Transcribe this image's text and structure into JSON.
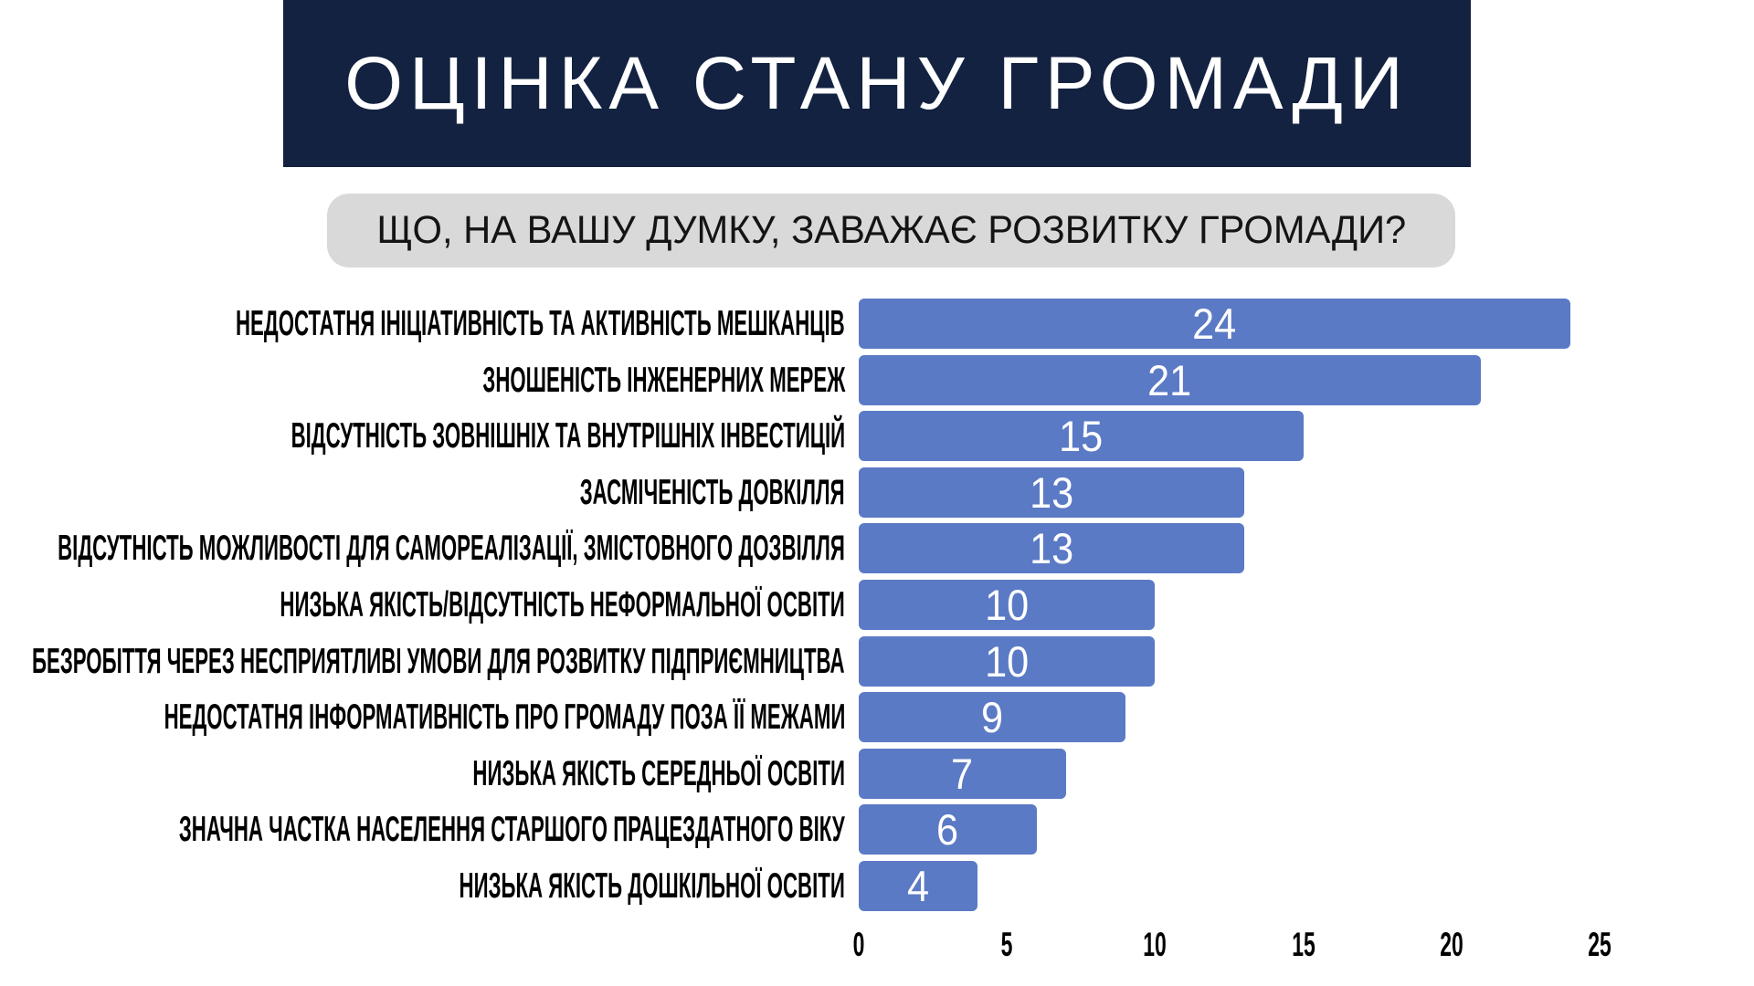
{
  "title": "ОЦІНКА СТАНУ ГРОМАДИ",
  "question": "ЩО, НА ВАШУ ДУМКУ, ЗАВАЖАЄ РОЗВИТКУ ГРОМАДИ?",
  "colors": {
    "page_bg": "#ffffff",
    "banner_bg": "#132240",
    "title_color": "#ffffff",
    "question_bg": "#d9d9d9",
    "question_color": "#141414",
    "bar_fill": "#5b7ac5",
    "value_color": "#ffffff",
    "label_color": "#000000"
  },
  "chart_data": {
    "type": "bar",
    "orientation": "horizontal",
    "title": "ОЦІНКА СТАНУ ГРОМАДИ",
    "subtitle": "ЩО, НА ВАШУ ДУМКУ, ЗАВАЖАЄ РОЗВИТКУ ГРОМАДИ?",
    "categories": [
      "НЕДОСТАТНЯ ІНІЦІАТИВНІСТЬ ТА АКТИВНІСТЬ МЕШКАНЦІВ",
      "ЗНОШЕНІСТЬ ІНЖЕНЕРНИХ МЕРЕЖ",
      "ВІДСУТНІСТЬ ЗОВНІШНІХ ТА ВНУТРІШНІХ ІНВЕСТИЦІЙ",
      "ЗАСМІЧЕНІСТЬ ДОВКІЛЛЯ",
      "ВІДСУТНІСТЬ МОЖЛИВОСТІ ДЛЯ САМОРЕАЛІЗАЦІЇ, ЗМІСТОВНОГО ДОЗВІЛЛЯ",
      "НИЗЬКА ЯКІСТЬ/ВІДСУТНІСТЬ НЕФОРМАЛЬНОЇ ОСВІТИ",
      "БЕЗРОБІТТЯ ЧЕРЕЗ НЕСПРИЯТЛИВІ УМОВИ ДЛЯ РОЗВИТКУ ПІДПРИЄМНИЦТВА",
      "НЕДОСТАТНЯ ІНФОРМАТИВНІСТЬ ПРО ГРОМАДУ ПОЗА ЇЇ МЕЖАМИ",
      "НИЗЬКА ЯКІСТЬ СЕРЕДНЬОЇ ОСВІТИ",
      "ЗНАЧНА ЧАСТКА НАСЕЛЕННЯ СТАРШОГО ПРАЦЕЗДАТНОГО ВІКУ",
      "НИЗЬКА ЯКІСТЬ ДОШКІЛЬНОЇ ОСВІТИ"
    ],
    "values": [
      24,
      21,
      15,
      13,
      13,
      10,
      10,
      9,
      7,
      6,
      4
    ],
    "x_ticks": [
      0,
      5,
      10,
      15,
      20,
      25
    ],
    "xlim": [
      0,
      25
    ],
    "grid": false,
    "legend": false,
    "value_labels": "inside-center"
  }
}
